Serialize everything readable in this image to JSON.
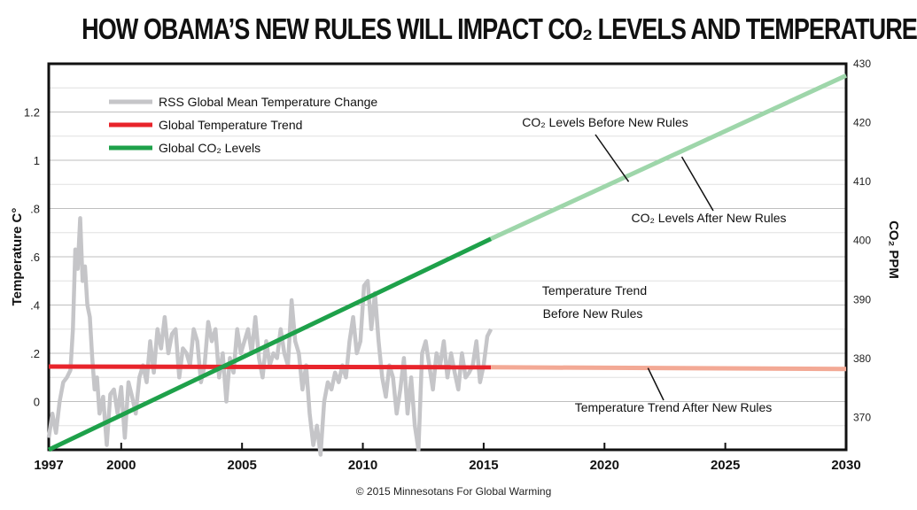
{
  "title": "HOW OBAMA’S NEW  RULES WILL IMPACT CO₂ LEVELS AND TEMPERATURE",
  "credit": "© 2015 Minnesotans For Global Warming",
  "chart_data": {
    "type": "line",
    "xlabel": "",
    "ylabel_left": "Temperature C°",
    "ylabel_right": "CO₂ PPM",
    "xlim": [
      1997,
      2030
    ],
    "ylim_left": [
      -0.2,
      1.4
    ],
    "ylim_right": [
      364.5,
      430
    ],
    "x_ticks": [
      1997,
      2000,
      2005,
      2010,
      2015,
      2020,
      2025,
      2030
    ],
    "y_ticks_left": [
      0,
      0.2,
      0.4,
      0.6,
      0.8,
      1,
      1.2
    ],
    "y_tick_labels_left": [
      "0",
      ".2",
      ".4",
      ".6",
      ".8",
      "1",
      "1.2"
    ],
    "y_ticks_right": [
      370,
      380,
      390,
      400,
      410,
      420,
      430
    ],
    "grid": true,
    "legend_position": "top-left",
    "legend": [
      {
        "name": "RSS Global Mean Temperature Change",
        "color": "#c5c5c8"
      },
      {
        "name": "Global Temperature Trend",
        "color": "#e8242b"
      },
      {
        "name": "Global CO₂ Levels",
        "color": "#1ea14a"
      }
    ],
    "series": [
      {
        "name": "RSS Global Mean Temperature Change",
        "axis": "left",
        "color": "#c5c5c8",
        "x": [
          1997.0,
          1997.15,
          1997.3,
          1997.45,
          1997.6,
          1997.75,
          1997.9,
          1998.0,
          1998.1,
          1998.2,
          1998.3,
          1998.4,
          1998.5,
          1998.6,
          1998.7,
          1998.8,
          1998.9,
          1999.0,
          1999.1,
          1999.25,
          1999.4,
          1999.55,
          1999.7,
          1999.85,
          2000.0,
          2000.15,
          2000.3,
          2000.45,
          2000.6,
          2000.75,
          2000.9,
          2001.05,
          2001.2,
          2001.35,
          2001.5,
          2001.65,
          2001.8,
          2001.95,
          2002.1,
          2002.25,
          2002.4,
          2002.55,
          2002.7,
          2002.85,
          2003.0,
          2003.15,
          2003.3,
          2003.45,
          2003.6,
          2003.75,
          2003.9,
          2004.05,
          2004.2,
          2004.35,
          2004.5,
          2004.65,
          2004.8,
          2004.95,
          2005.1,
          2005.25,
          2005.4,
          2005.55,
          2005.7,
          2005.85,
          2006.0,
          2006.15,
          2006.3,
          2006.45,
          2006.6,
          2006.75,
          2006.9,
          2007.05,
          2007.2,
          2007.35,
          2007.5,
          2007.65,
          2007.8,
          2007.95,
          2008.1,
          2008.25,
          2008.4,
          2008.55,
          2008.7,
          2008.85,
          2009.0,
          2009.15,
          2009.3,
          2009.45,
          2009.6,
          2009.75,
          2009.9,
          2010.05,
          2010.2,
          2010.35,
          2010.5,
          2010.65,
          2010.8,
          2010.95,
          2011.1,
          2011.25,
          2011.4,
          2011.55,
          2011.7,
          2011.85,
          2012.0,
          2012.15,
          2012.3,
          2012.45,
          2012.6,
          2012.75,
          2012.9,
          2013.05,
          2013.2,
          2013.35,
          2013.5,
          2013.65,
          2013.8,
          2013.95,
          2014.1,
          2014.25,
          2014.4,
          2014.55,
          2014.7,
          2014.85,
          2015.0,
          2015.15,
          2015.3
        ],
        "values": [
          -0.15,
          -0.05,
          -0.13,
          0.0,
          0.08,
          0.1,
          0.13,
          0.3,
          0.63,
          0.55,
          0.76,
          0.5,
          0.56,
          0.4,
          0.35,
          0.18,
          0.05,
          0.1,
          -0.05,
          0.02,
          -0.18,
          0.03,
          0.05,
          -0.05,
          0.06,
          -0.15,
          0.08,
          0.02,
          -0.05,
          0.1,
          0.15,
          0.08,
          0.25,
          0.12,
          0.3,
          0.22,
          0.35,
          0.2,
          0.28,
          0.3,
          0.1,
          0.22,
          0.2,
          0.15,
          0.3,
          0.25,
          0.08,
          0.15,
          0.33,
          0.25,
          0.3,
          0.1,
          0.2,
          0.0,
          0.18,
          0.12,
          0.3,
          0.2,
          0.25,
          0.3,
          0.2,
          0.35,
          0.18,
          0.1,
          0.25,
          0.15,
          0.2,
          0.18,
          0.3,
          0.2,
          0.15,
          0.42,
          0.25,
          0.2,
          0.05,
          0.15,
          -0.05,
          -0.18,
          -0.1,
          -0.22,
          0.0,
          0.08,
          0.05,
          0.12,
          0.08,
          0.15,
          0.1,
          0.25,
          0.35,
          0.2,
          0.25,
          0.48,
          0.5,
          0.3,
          0.45,
          0.25,
          0.1,
          0.02,
          0.15,
          0.1,
          -0.05,
          0.05,
          0.18,
          -0.05,
          0.1,
          -0.1,
          -0.2,
          0.2,
          0.25,
          0.15,
          0.05,
          0.2,
          0.15,
          0.25,
          0.1,
          0.2,
          0.12,
          0.05,
          0.2,
          0.1,
          0.12,
          0.15,
          0.25,
          0.08,
          0.15,
          0.27,
          0.3
        ]
      },
      {
        "name": "Global Temperature Trend",
        "axis": "left",
        "color": "#e8242b",
        "x": [
          1997,
          2015.3
        ],
        "values": [
          0.145,
          0.142
        ]
      },
      {
        "name": "Temperature Trend After New Rules",
        "axis": "left",
        "color": "#f3a995",
        "x": [
          2015.3,
          2030
        ],
        "values": [
          0.142,
          0.135
        ]
      },
      {
        "name": "Global CO₂ Levels",
        "axis": "right",
        "color": "#1ea14a",
        "x": [
          1997,
          2015.3
        ],
        "values": [
          364.5,
          400.3
        ]
      },
      {
        "name": "CO₂ Levels After New Rules",
        "axis": "right",
        "color": "#9ed6aa",
        "x": [
          2015.3,
          2030
        ],
        "values": [
          400.3,
          428.0
        ]
      }
    ],
    "annotations": [
      {
        "text": "CO₂ Levels Before New Rules",
        "arrow_to": [
          2021,
          410.0
        ]
      },
      {
        "text": "CO₂ Levels After New Rules",
        "arrow_to": [
          2023.2,
          414.2
        ]
      },
      {
        "text": "Temperature Trend",
        "arrow_to": [
          2020.0,
          0.14
        ]
      },
      {
        "text": "Before New Rules"
      },
      {
        "text": "Temperature Trend After New Rules",
        "arrow_to": [
          2021.8,
          0.139
        ]
      }
    ]
  }
}
